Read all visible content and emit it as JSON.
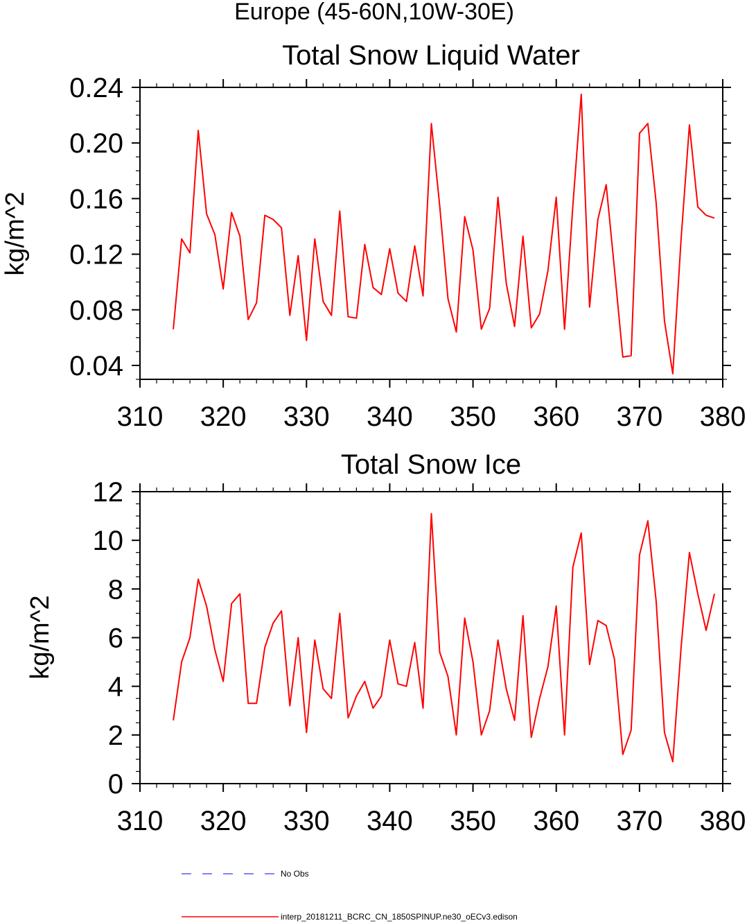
{
  "page": {
    "suptitle": "Europe (45-60N,10W-30E)"
  },
  "chart_data": [
    {
      "type": "line",
      "title": "Total Snow Liquid Water",
      "xlabel": "",
      "ylabel": "kg/m^2",
      "xlim": [
        310,
        380
      ],
      "ylim": [
        0.03,
        0.24
      ],
      "xticks": [
        "310",
        "320",
        "330",
        "340",
        "350",
        "360",
        "370",
        "380"
      ],
      "yticks": [
        "0.04",
        "0.08",
        "0.12",
        "0.16",
        "0.20",
        "0.24"
      ],
      "x": [
        314,
        315,
        316,
        317,
        318,
        319,
        320,
        321,
        322,
        323,
        324,
        325,
        326,
        327,
        328,
        329,
        330,
        331,
        332,
        333,
        334,
        335,
        336,
        337,
        338,
        339,
        340,
        341,
        342,
        343,
        344,
        345,
        346,
        347,
        348,
        349,
        350,
        351,
        352,
        353,
        354,
        355,
        356,
        357,
        358,
        359,
        360,
        361,
        362,
        363,
        364,
        365,
        366,
        367,
        368,
        369,
        370,
        371,
        372,
        373,
        374,
        375,
        376,
        377,
        378,
        379
      ],
      "series": [
        {
          "name": "interp_20181211_BCRC_CN_1850SPINUP.ne30_oECv3.edison",
          "color": "#ff0000",
          "values": [
            0.066,
            0.131,
            0.121,
            0.209,
            0.149,
            0.134,
            0.095,
            0.15,
            0.133,
            0.073,
            0.085,
            0.148,
            0.145,
            0.139,
            0.076,
            0.119,
            0.058,
            0.131,
            0.086,
            0.076,
            0.151,
            0.075,
            0.074,
            0.127,
            0.096,
            0.091,
            0.124,
            0.092,
            0.086,
            0.126,
            0.09,
            0.214,
            0.155,
            0.088,
            0.064,
            0.147,
            0.123,
            0.066,
            0.081,
            0.161,
            0.099,
            0.068,
            0.133,
            0.067,
            0.077,
            0.108,
            0.161,
            0.066,
            0.155,
            0.235,
            0.082,
            0.145,
            0.17,
            0.109,
            0.046,
            0.047,
            0.207,
            0.214,
            0.157,
            0.072,
            0.034,
            0.131,
            0.213,
            0.154,
            0.148,
            0.146
          ]
        }
      ]
    },
    {
      "type": "line",
      "title": "Total Snow Ice",
      "xlabel": "",
      "ylabel": "kg/m^2",
      "xlim": [
        310,
        380
      ],
      "ylim": [
        0,
        12
      ],
      "xticks": [
        "310",
        "320",
        "330",
        "340",
        "350",
        "360",
        "370",
        "380"
      ],
      "yticks": [
        "0",
        "2",
        "4",
        "6",
        "8",
        "10",
        "12"
      ],
      "x": [
        314,
        315,
        316,
        317,
        318,
        319,
        320,
        321,
        322,
        323,
        324,
        325,
        326,
        327,
        328,
        329,
        330,
        331,
        332,
        333,
        334,
        335,
        336,
        337,
        338,
        339,
        340,
        341,
        342,
        343,
        344,
        345,
        346,
        347,
        348,
        349,
        350,
        351,
        352,
        353,
        354,
        355,
        356,
        357,
        358,
        359,
        360,
        361,
        362,
        363,
        364,
        365,
        366,
        367,
        368,
        369,
        370,
        371,
        372,
        373,
        374,
        375,
        376,
        377,
        378,
        379
      ],
      "series": [
        {
          "name": "interp_20181211_BCRC_CN_1850SPINUP.ne30_oECv3.edison",
          "color": "#ff0000",
          "values": [
            2.6,
            5.0,
            6.0,
            8.4,
            7.3,
            5.5,
            4.2,
            7.4,
            7.8,
            3.3,
            3.3,
            5.6,
            6.6,
            7.1,
            3.2,
            6.0,
            2.1,
            5.9,
            3.9,
            3.5,
            7.0,
            2.7,
            3.6,
            4.2,
            3.1,
            3.6,
            5.9,
            4.1,
            4.0,
            5.8,
            3.1,
            11.1,
            5.4,
            4.4,
            2.0,
            6.8,
            5.0,
            2.0,
            3.0,
            5.9,
            3.9,
            2.6,
            6.9,
            1.9,
            3.5,
            4.8,
            7.3,
            2.0,
            8.9,
            10.3,
            4.9,
            6.7,
            6.5,
            5.1,
            1.2,
            2.2,
            9.4,
            10.8,
            7.5,
            2.1,
            0.9,
            5.6,
            9.5,
            7.8,
            6.3,
            7.8
          ]
        }
      ]
    }
  ],
  "legend": [
    {
      "label": "No Obs",
      "color": "#0000ff",
      "style": "dashed"
    },
    {
      "label": "interp_20181211_BCRC_CN_1850SPINUP.ne30_oECv3.edison",
      "color": "#ff0000",
      "style": "solid"
    }
  ]
}
